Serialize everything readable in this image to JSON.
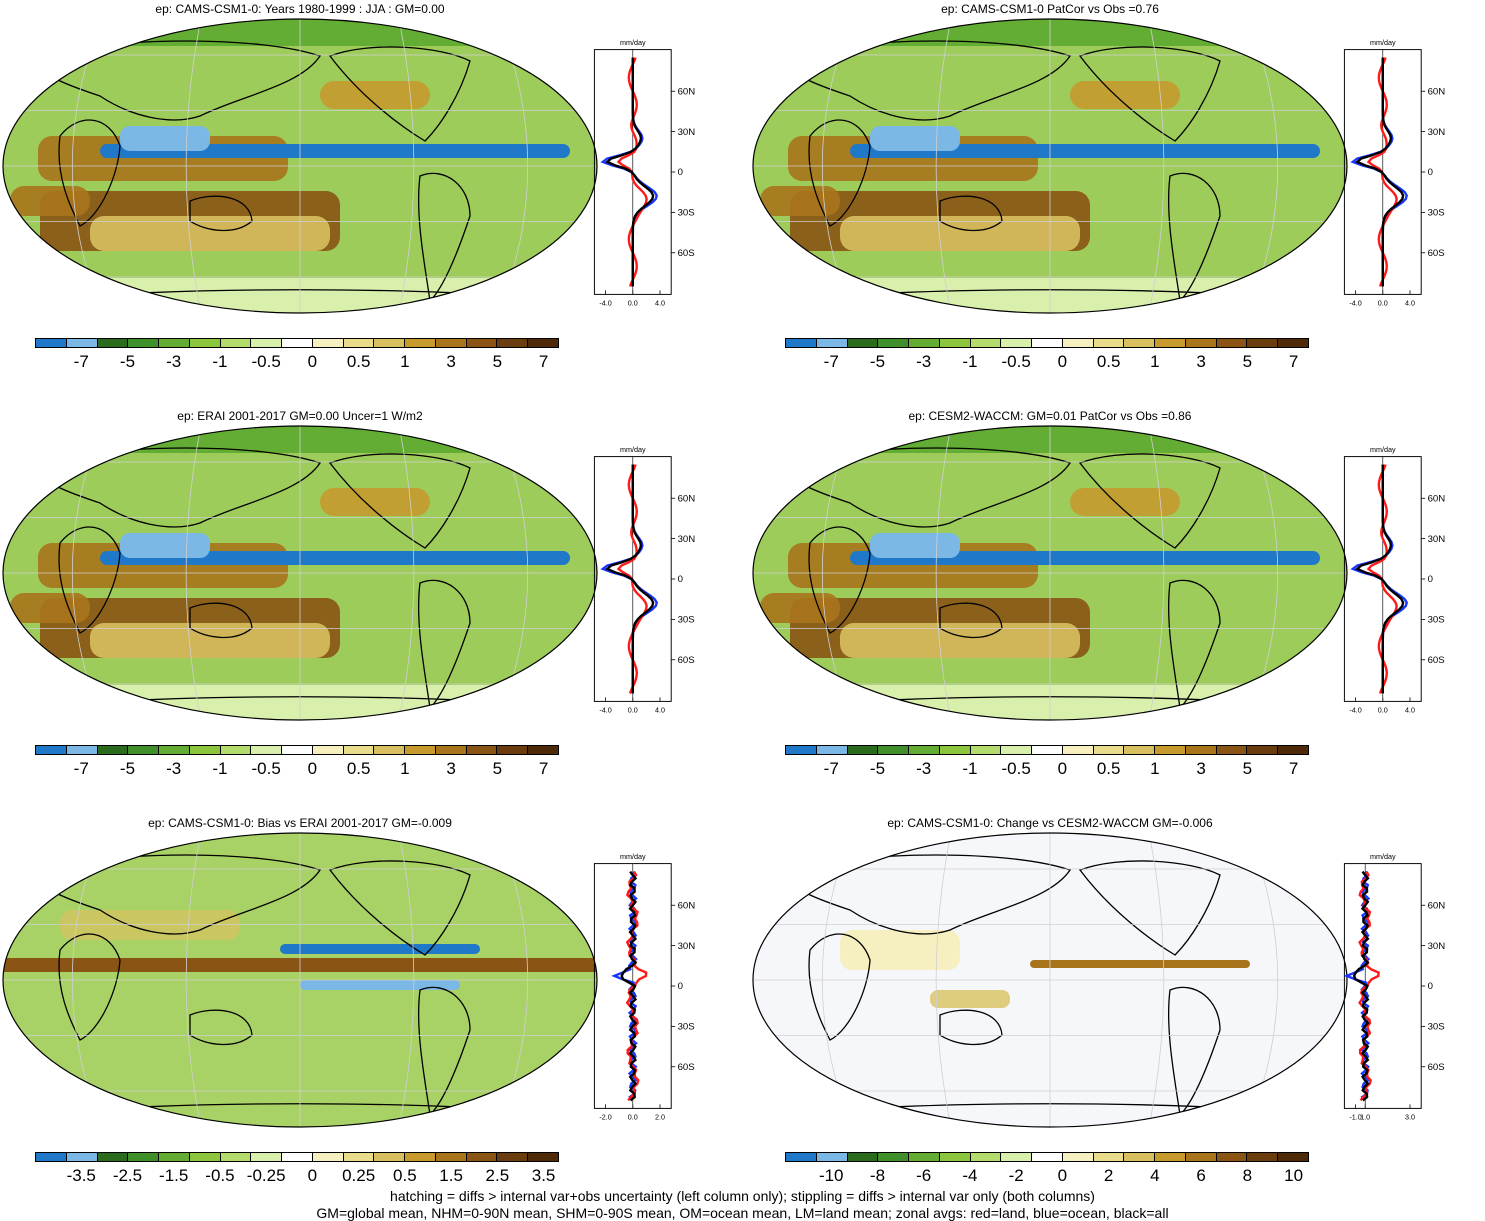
{
  "palettes": {
    "precip": [
      "#1f78c8",
      "#7bb8e6",
      "#2a6b1e",
      "#3f8f2a",
      "#63ad34",
      "#8cc63f",
      "#b4dc6c",
      "#d9efac",
      "#ffffff",
      "#f6f0c0",
      "#e9dc8a",
      "#d8c060",
      "#c79a2e",
      "#a8741c",
      "#8a5414",
      "#6a3c0e",
      "#4e2a08"
    ],
    "land": "#b8d98a",
    "ocean": "#e8f2d8"
  },
  "colors": {
    "land_line": "#ff1a1a",
    "ocean_line": "#1a35ff",
    "all_line": "#000000"
  },
  "panels": [
    {
      "title": "ep: CAMS-CSM1-0: Years 1980-1999 : JJA : GM=0.00",
      "colorbar_labels": [
        "-7",
        "-5",
        "-3",
        "-1",
        "-0.5",
        "0",
        "0.5",
        "1",
        "3",
        "5",
        "7"
      ],
      "zonal": {
        "units": "mm/day",
        "x_ticks": [
          "-4.0",
          "0.0",
          "4.0"
        ],
        "lat_labels": [
          "60N",
          "30N",
          "0",
          "30S",
          "60S"
        ]
      },
      "style": "precip"
    },
    {
      "title": "ep: CAMS-CSM1-0 PatCor vs Obs =0.76",
      "colorbar_labels": [
        "-7",
        "-5",
        "-3",
        "-1",
        "-0.5",
        "0",
        "0.5",
        "1",
        "3",
        "5",
        "7"
      ],
      "zonal": {
        "units": "mm/day",
        "x_ticks": [
          "-4.0",
          "0.0",
          "4.0"
        ],
        "lat_labels": [
          "60N",
          "30N",
          "0",
          "30S",
          "60S"
        ]
      },
      "style": "precip"
    },
    {
      "title": "ep: ERAI 2001-2017 GM=0.00 Uncer=1 W/m2",
      "colorbar_labels": [
        "-7",
        "-5",
        "-3",
        "-1",
        "-0.5",
        "0",
        "0.5",
        "1",
        "3",
        "5",
        "7"
      ],
      "zonal": {
        "units": "mm/day",
        "x_ticks": [
          "-4.0",
          "0.0",
          "4.0"
        ],
        "lat_labels": [
          "60N",
          "30N",
          "0",
          "30S",
          "60S"
        ]
      },
      "style": "precip"
    },
    {
      "title": "ep: CESM2-WACCM: GM=0.01 PatCor vs Obs =0.86",
      "colorbar_labels": [
        "-7",
        "-5",
        "-3",
        "-1",
        "-0.5",
        "0",
        "0.5",
        "1",
        "3",
        "5",
        "7"
      ],
      "zonal": {
        "units": "mm/day",
        "x_ticks": [
          "-4.0",
          "0.0",
          "4.0"
        ],
        "lat_labels": [
          "60N",
          "30N",
          "0",
          "30S",
          "60S"
        ]
      },
      "style": "precip"
    },
    {
      "title": "ep: CAMS-CSM1-0: Bias vs ERAI 2001-2017 GM=-0.009",
      "colorbar_labels": [
        "-3.5",
        "-2.5",
        "-1.5",
        "-0.5",
        "-0.25",
        "0",
        "0.25",
        "0.5",
        "1.5",
        "2.5",
        "3.5"
      ],
      "zonal": {
        "units": "mm/day",
        "x_ticks": [
          "-2.0",
          "0.0",
          "2.0"
        ],
        "lat_labels": [
          "60N",
          "30N",
          "0",
          "30S",
          "60S"
        ]
      },
      "style": "bias"
    },
    {
      "title": "ep: CAMS-CSM1-0: Change vs CESM2-WACCM GM=-0.006",
      "colorbar_labels": [
        "-10",
        "-8",
        "-6",
        "-4",
        "-2",
        "0",
        "2",
        "4",
        "6",
        "8",
        "10"
      ],
      "zonal": {
        "units": "mm/day",
        "x_ticks": [
          "-1.0",
          "1.0",
          "3.0"
        ],
        "lat_labels": [
          "60N",
          "30N",
          "0",
          "30S",
          "60S"
        ]
      },
      "style": "change"
    }
  ],
  "footer": {
    "line1": "hatching = diffs > internal var+obs uncertainty (left column only); stippling = diffs > internal var only (both columns)",
    "line2": "GM=global mean, NHM=0-90N mean, SHM=0-90S mean, OM=ocean mean, LM=land mean; zonal avgs: red=land, blue=ocean, black=all"
  }
}
